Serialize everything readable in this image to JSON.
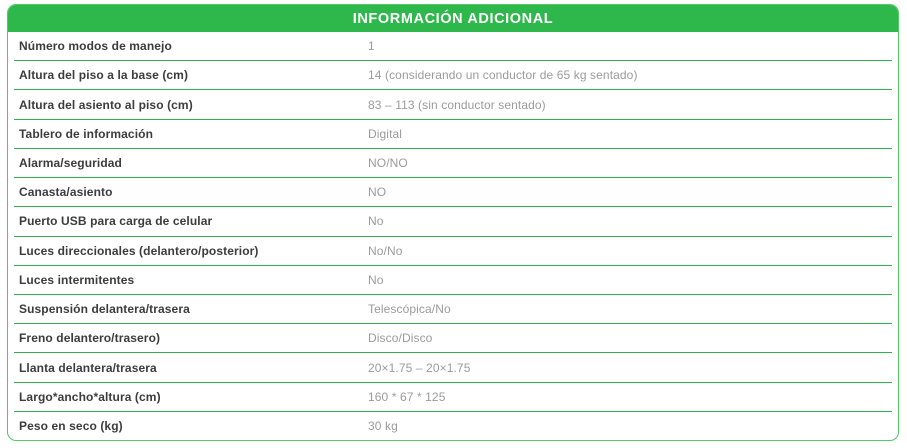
{
  "header": {
    "title": "INFORMACIÓN ADICIONAL"
  },
  "colors": {
    "header_bg": "#2eb84b",
    "divider": "#2fb14d",
    "card_border": "#55c969",
    "label_text": "#3c3c3c",
    "value_text": "#9b9b9b",
    "header_text": "#ffffff"
  },
  "table": {
    "rows": [
      {
        "label": "Número modos de manejo",
        "value": "1"
      },
      {
        "label": "Altura del piso a la base (cm)",
        "value": "14 (considerando un conductor de 65 kg sentado)"
      },
      {
        "label": "Altura del asiento al piso (cm)",
        "value": "83 – 113 (sin conductor sentado)"
      },
      {
        "label": "Tablero de información",
        "value": "Digital"
      },
      {
        "label": "Alarma/seguridad",
        "value": "NO/NO"
      },
      {
        "label": "Canasta/asiento",
        "value": "NO"
      },
      {
        "label": "Puerto USB para carga de celular",
        "value": "No"
      },
      {
        "label": "Luces direccionales (delantero/posterior)",
        "value": "No/No"
      },
      {
        "label": "Luces intermitentes",
        "value": "No"
      },
      {
        "label": "Suspensión delantera/trasera",
        "value": "Telescópica/No"
      },
      {
        "label": "Freno delantero/trasero)",
        "value": "Disco/Disco"
      },
      {
        "label": "Llanta delantera/trasera",
        "value": "20×1.75 – 20×1.75"
      },
      {
        "label": "Largo*ancho*altura (cm)",
        "value": "160 * 67 * 125"
      },
      {
        "label": "Peso en seco (kg)",
        "value": "30 kg"
      }
    ]
  }
}
